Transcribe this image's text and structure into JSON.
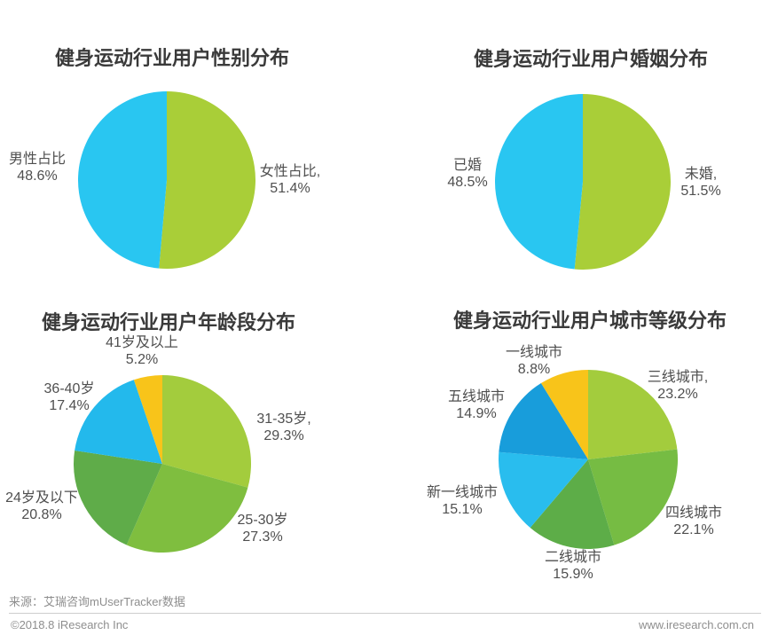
{
  "page": {
    "background": "#ffffff"
  },
  "footer": {
    "source": "来源：艾瑞咨询mUserTracker数据",
    "copyright": "©2018.8 iResearch Inc",
    "website": "www.iresearch.com.cn"
  },
  "chart_data": [
    {
      "type": "pie",
      "title": "健身运动行业用户性别分布",
      "start_angle_deg": 0,
      "direction": "clockwise",
      "legend": "none",
      "slices": [
        {
          "label": "女性占比,",
          "pct": "51.4%",
          "value": 51.4,
          "color": "#A9CE38"
        },
        {
          "label": "男性占比",
          "pct": "48.6%",
          "value": 48.6,
          "color": "#29C6F1"
        }
      ]
    },
    {
      "type": "pie",
      "title": "健身运动行业用户婚姻分布",
      "start_angle_deg": 0,
      "direction": "clockwise",
      "legend": "none",
      "slices": [
        {
          "label": "未婚,",
          "pct": "51.5%",
          "value": 51.5,
          "color": "#A9CE38"
        },
        {
          "label": "已婚",
          "pct": "48.5%",
          "value": 48.5,
          "color": "#29C6F1"
        }
      ]
    },
    {
      "type": "pie",
      "title": "健身运动行业用户年龄段分布",
      "start_angle_deg": 0,
      "direction": "clockwise",
      "legend": "none",
      "slices": [
        {
          "label": "31-35岁,",
          "pct": "29.3%",
          "value": 29.3,
          "color": "#A3CC3D"
        },
        {
          "label": "25-30岁",
          "pct": "27.3%",
          "value": 27.3,
          "color": "#7FBE3F"
        },
        {
          "label": "24岁及以下",
          "pct": "20.8%",
          "value": 20.8,
          "color": "#5FAC49"
        },
        {
          "label": "36-40岁",
          "pct": "17.4%",
          "value": 17.4,
          "color": "#23B9EC"
        },
        {
          "label": "41岁及以上",
          "pct": "5.2%",
          "value": 5.2,
          "color": "#F8C41A"
        }
      ]
    },
    {
      "type": "pie",
      "title": "健身运动行业用户城市等级分布",
      "start_angle_deg": 0,
      "direction": "clockwise",
      "legend": "none",
      "slices": [
        {
          "label": "三线城市,",
          "pct": "23.2%",
          "value": 23.2,
          "color": "#A3CC3D"
        },
        {
          "label": "四线城市",
          "pct": "22.1%",
          "value": 22.1,
          "color": "#76BC43"
        },
        {
          "label": "二线城市",
          "pct": "15.9%",
          "value": 15.9,
          "color": "#5DAD48"
        },
        {
          "label": "新一线城市",
          "pct": "15.1%",
          "value": 15.1,
          "color": "#29BDEE"
        },
        {
          "label": "五线城市",
          "pct": "14.9%",
          "value": 14.9,
          "color": "#189DDB"
        },
        {
          "label": "一线城市",
          "pct": "8.8%",
          "value": 8.8,
          "color": "#F8C41A"
        }
      ]
    }
  ]
}
